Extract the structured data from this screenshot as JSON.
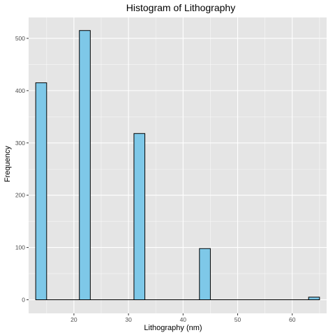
{
  "chart_data": {
    "type": "bar",
    "title": "Histogram of Lithography",
    "xlabel": "Lithography (nm)",
    "ylabel": "Frequency",
    "bin_width": 2,
    "xlim": [
      11.7,
      66.3
    ],
    "ylim": [
      -26,
      540
    ],
    "xticks": [
      20,
      30,
      40,
      50,
      60
    ],
    "yticks": [
      0,
      100,
      200,
      300,
      400,
      500
    ],
    "bins": [
      {
        "start": 13,
        "end": 15,
        "count": 415
      },
      {
        "start": 21,
        "end": 23,
        "count": 515
      },
      {
        "start": 31,
        "end": 33,
        "count": 318
      },
      {
        "start": 43,
        "end": 45,
        "count": 98
      },
      {
        "start": 63,
        "end": 65,
        "count": 5
      }
    ],
    "grid": true,
    "colors": {
      "bar_fill": "#7ec8e8",
      "bar_stroke": "#000000",
      "panel_background": "#e5e5e5",
      "grid": "#ffffff"
    }
  }
}
